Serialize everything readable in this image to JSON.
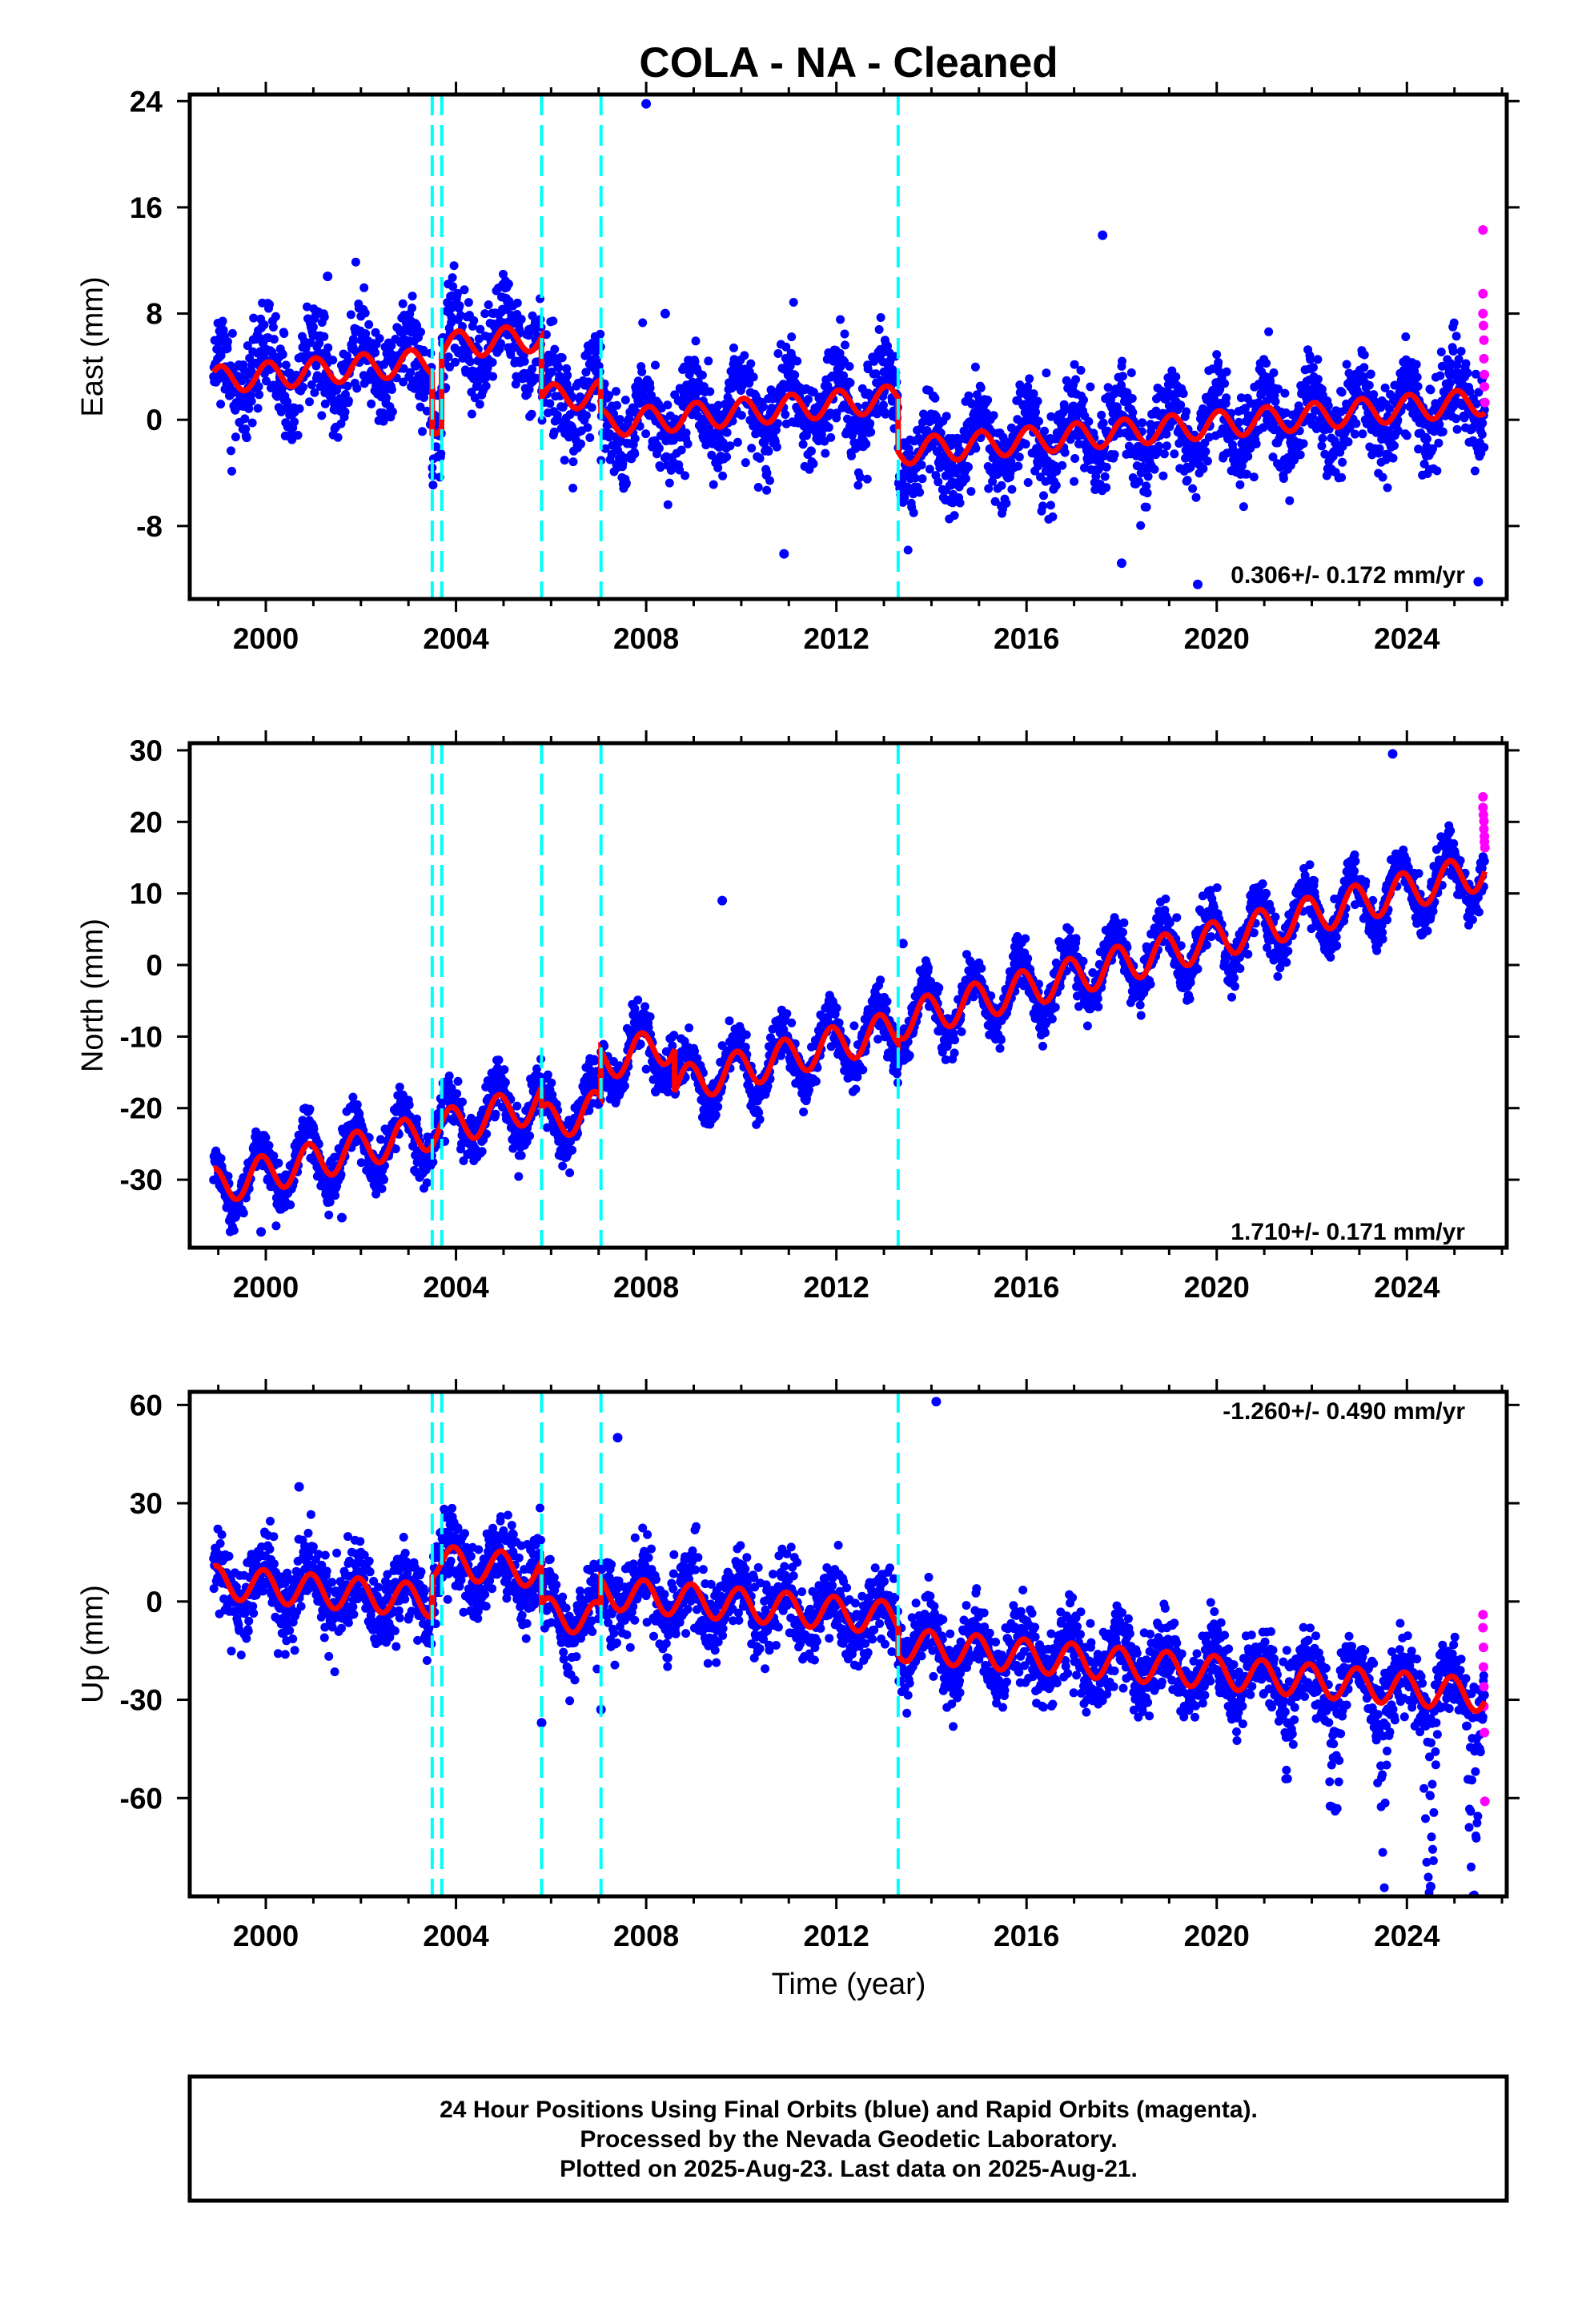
{
  "title": "COLA  - NA - Cleaned",
  "xlabel": "Time (year)",
  "footer": {
    "line1": "24 Hour Positions Using Final Orbits (blue) and Rapid Orbits (magenta).",
    "line2": "Processed by the Nevada Geodetic Laboratory.",
    "line3": "Plotted on 2025-Aug-23. Last data on 2025-Aug-21."
  },
  "colors": {
    "final_orbits": "#0000ff",
    "rapid_orbits": "#ff00ff",
    "model": "#ff0000",
    "events": "#00ffff"
  },
  "chart_data": [
    {
      "type": "scatter",
      "component": "east",
      "ylabel": "East (mm)",
      "rate": "0.306+/- 0.172 mm/yr",
      "xlim": [
        1998.4,
        2026.1
      ],
      "ylim": [
        -13.5,
        24.5
      ],
      "xticks": [
        2000,
        2004,
        2008,
        2012,
        2016,
        2020,
        2024
      ],
      "yticks": [
        -8,
        0,
        8,
        16,
        24
      ],
      "events": [
        2003.5,
        2003.7,
        2005.8,
        2007.05,
        2013.3
      ],
      "data_start": 1998.9,
      "data_end": 2025.64,
      "model": {
        "velocity": 0.306,
        "t0": 1998.9,
        "offsets": [
          [
            1998.9,
            3.0
          ],
          [
            2003.5,
            -4.5
          ],
          [
            2003.7,
            5.6
          ],
          [
            2005.8,
            -4.6
          ],
          [
            2007.05,
            -2.3
          ],
          [
            2013.3,
            -4.0
          ]
        ],
        "annual": 1.0,
        "phase": 0.2
      },
      "noise": 1.7,
      "seasonal_noise": 1.2,
      "seed": 11,
      "outliers": [
        [
          2008.0,
          23.8
        ],
        [
          2017.6,
          13.9
        ],
        [
          2001.3,
          10.8
        ],
        [
          2008.4,
          8.0
        ],
        [
          2010.9,
          -10.1
        ],
        [
          2018.0,
          -10.8
        ],
        [
          2019.6,
          -12.4
        ],
        [
          2025.5,
          -12.2
        ]
      ],
      "rapid": [
        [
          2025.6,
          14.3
        ],
        [
          2025.6,
          9.5
        ],
        [
          2025.6,
          8.0
        ],
        [
          2025.61,
          7.1
        ],
        [
          2025.62,
          6.0
        ],
        [
          2025.62,
          4.6
        ],
        [
          2025.63,
          3.4
        ],
        [
          2025.63,
          2.5
        ],
        [
          2025.64,
          1.3
        ]
      ]
    },
    {
      "type": "scatter",
      "component": "north",
      "ylabel": "North (mm)",
      "rate": "1.710+/- 0.171 mm/yr",
      "xlim": [
        1998.4,
        2026.1
      ],
      "ylim": [
        -39.5,
        31.0
      ],
      "xticks": [
        2000,
        2004,
        2008,
        2012,
        2016,
        2020,
        2024
      ],
      "yticks": [
        -30,
        -20,
        -10,
        0,
        10,
        20,
        30
      ],
      "events": [
        2003.5,
        2003.7,
        2005.8,
        2007.05,
        2013.3
      ],
      "data_start": 1998.9,
      "data_end": 2025.64,
      "model": {
        "velocity": 1.71,
        "t0": 1998.9,
        "offsets": [
          [
            1998.9,
            -31.0
          ],
          [
            2005.8,
            -3.0
          ],
          [
            2007.05,
            6.5
          ],
          [
            2008.6,
            -6.0
          ],
          [
            2013.3,
            1.0
          ]
        ],
        "annual": 2.6,
        "phase": 0.35
      },
      "noise": 1.6,
      "seasonal_noise": 1.8,
      "seed": 23,
      "outliers": [
        [
          1999.9,
          -37.3
        ],
        [
          2013.4,
          3.0
        ],
        [
          2023.7,
          29.5
        ],
        [
          2009.6,
          9.0
        ],
        [
          2001.6,
          -35.3
        ]
      ],
      "rapid": [
        [
          2025.6,
          23.5
        ],
        [
          2025.6,
          22.0
        ],
        [
          2025.61,
          21.0
        ],
        [
          2025.62,
          20.1
        ],
        [
          2025.62,
          19.0
        ],
        [
          2025.63,
          18.0
        ],
        [
          2025.63,
          17.2
        ],
        [
          2025.64,
          16.4
        ]
      ]
    },
    {
      "type": "scatter",
      "component": "up",
      "ylabel": "Up (mm)",
      "rate": "-1.260+/- 0.490 mm/yr",
      "xlim": [
        1998.4,
        2026.1
      ],
      "ylim": [
        -90.0,
        64.0
      ],
      "xticks": [
        2000,
        2004,
        2008,
        2012,
        2016,
        2020,
        2024
      ],
      "yticks": [
        -60,
        -30,
        0,
        30,
        60
      ],
      "events": [
        2003.5,
        2003.7,
        2005.8,
        2007.05,
        2013.3
      ],
      "data_start": 1998.9,
      "data_end": 2025.64,
      "model": {
        "velocity": -1.26,
        "t0": 1998.9,
        "offsets": [
          [
            1998.9,
            6.0
          ],
          [
            2003.5,
            12.0
          ],
          [
            2005.8,
            -13.0
          ],
          [
            2007.05,
            8.0
          ],
          [
            2013.3,
            -8.0
          ]
        ],
        "annual": 5.0,
        "phase": 0.3
      },
      "noise": 6.0,
      "seasonal_noise": 2.0,
      "seed": 37,
      "outliers": [
        [
          2014.1,
          61.0
        ],
        [
          2007.4,
          50.0
        ],
        [
          2005.8,
          -37.0
        ],
        [
          2007.05,
          -33.0
        ],
        [
          2024.5,
          -87.0
        ],
        [
          2000.7,
          35.0
        ]
      ],
      "dips": [
        [
          2021.5,
          -35.0
        ],
        [
          2022.5,
          -60.0
        ],
        [
          2023.5,
          -62.0
        ],
        [
          2024.5,
          -80.0
        ],
        [
          2025.4,
          -78.0
        ]
      ],
      "rapid": [
        [
          2025.6,
          -4.0
        ],
        [
          2025.6,
          -8.0
        ],
        [
          2025.61,
          -14.0
        ],
        [
          2025.61,
          -20.0
        ],
        [
          2025.62,
          -26.0
        ],
        [
          2025.62,
          -32.0
        ],
        [
          2025.63,
          -40.0
        ],
        [
          2025.64,
          -61.0
        ]
      ]
    }
  ]
}
